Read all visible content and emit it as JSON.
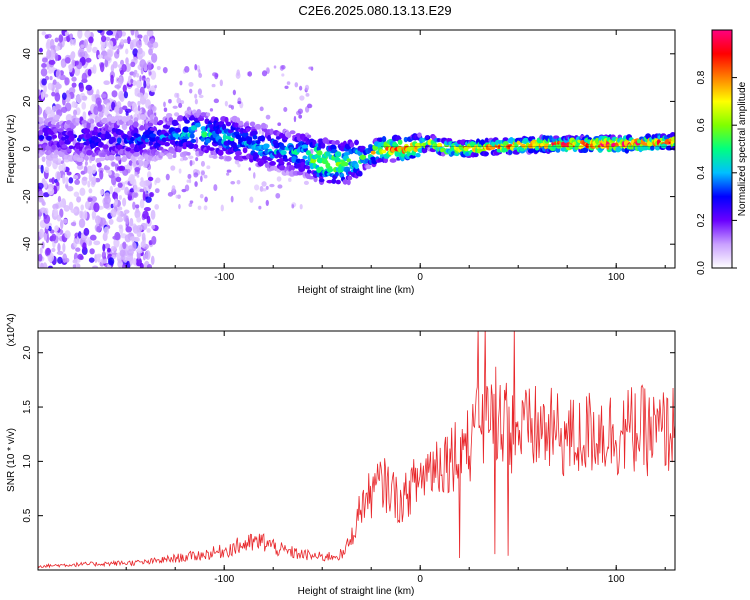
{
  "title": "C2E6.2025.080.13.13.E29",
  "chart_data": [
    {
      "type": "heatmap",
      "xlabel": "Height of straight line (km)",
      "ylabel": "Frequency (Hz)",
      "xlim": [
        -195,
        130
      ],
      "ylim": [
        -50,
        50
      ],
      "xticks": [
        -100,
        0,
        100
      ],
      "yticks": [
        -40,
        -20,
        0,
        20,
        40
      ],
      "colorbar": {
        "label": "Normalized spectral amplitude",
        "range": [
          0,
          1
        ],
        "ticks": [
          "0.0",
          "0.2",
          "0.4",
          "0.6",
          "0.8"
        ],
        "colors": [
          "#ffffff",
          "#c9a0ff",
          "#6a00ff",
          "#0000ff",
          "#00bfff",
          "#00ff80",
          "#80ff00",
          "#ffff00",
          "#ff8000",
          "#ff0000",
          "#ff0080"
        ]
      },
      "ridge": {
        "x": [
          -190,
          -170,
          -150,
          -130,
          -115,
          -100,
          -90,
          -80,
          -70,
          -60,
          -50,
          -40,
          -30,
          -20,
          -10,
          0,
          5,
          10,
          20,
          40,
          60,
          80,
          100,
          130
        ],
        "freq": [
          5,
          4,
          4,
          5,
          7,
          5,
          3,
          1,
          -1,
          -2,
          -5,
          -6,
          -4,
          0,
          0,
          1,
          3,
          1,
          0,
          1,
          2,
          2,
          2,
          3
        ],
        "amplitude": [
          0.25,
          0.3,
          0.3,
          0.35,
          0.45,
          0.45,
          0.4,
          0.45,
          0.4,
          0.45,
          0.7,
          0.6,
          0.5,
          0.75,
          0.85,
          0.8,
          0.6,
          0.8,
          0.85,
          0.8,
          0.9,
          0.92,
          0.95,
          0.9
        ]
      }
    },
    {
      "type": "line",
      "xlabel": "Height of straight line (km)",
      "ylabel": "SNR (10 * v/v)",
      "yscale_note": "(x10^4)",
      "xlim": [
        -195,
        130
      ],
      "ylim": [
        0,
        2.2
      ],
      "xticks": [
        -100,
        0,
        100
      ],
      "yticks": [
        "0.5",
        "1.0",
        "1.5",
        "2.0"
      ],
      "color": "#e8262a",
      "series": [
        {
          "x": [
            -195,
            -180,
            -160,
            -140,
            -120,
            -110,
            -100,
            -90,
            -80,
            -70,
            -60,
            -50,
            -40,
            -35,
            -30,
            -25,
            -20,
            -15,
            -10,
            -5,
            0,
            5,
            10,
            15,
            20,
            25,
            30,
            35,
            40,
            45,
            50,
            60,
            70,
            80,
            90,
            100,
            110,
            120,
            130
          ],
          "values": [
            0.03,
            0.04,
            0.05,
            0.06,
            0.1,
            0.12,
            0.15,
            0.2,
            0.22,
            0.15,
            0.12,
            0.1,
            0.12,
            0.3,
            0.6,
            0.7,
            0.8,
            0.75,
            0.6,
            0.75,
            0.85,
            0.95,
            1.0,
            1.05,
            1.1,
            1.15,
            1.3,
            1.4,
            1.5,
            1.3,
            1.25,
            1.3,
            1.25,
            1.2,
            1.3,
            1.25,
            1.3,
            1.25,
            1.3
          ]
        }
      ]
    }
  ]
}
